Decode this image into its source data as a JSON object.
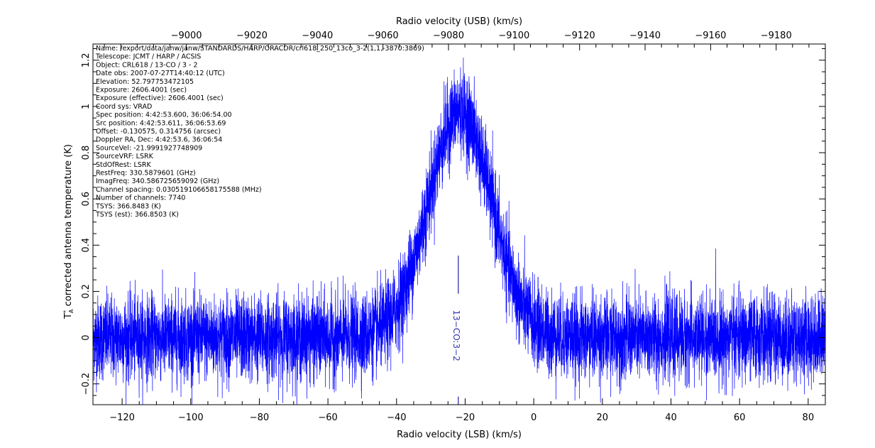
{
  "chart_data": {
    "type": "line",
    "xlabel": "Radio velocity (LSB) (km/s)",
    "x2label": "Radio velocity (USB) (km/s)",
    "ylabel_main": "T",
    "ylabel_sup": "*",
    "ylabel_sub": "A",
    "ylabel_rest": "  corrected antenna temperature (K)",
    "xlim": [
      -128.5,
      85
    ],
    "x2lim": [
      -8971.5,
      -9195
    ],
    "ylim": [
      -0.29,
      1.27
    ],
    "xticks": [
      -120,
      -100,
      -80,
      -60,
      -40,
      -20,
      0,
      20,
      40,
      60,
      80
    ],
    "xtick_labels": [
      "−120",
      "−100",
      "−80",
      "−60",
      "−40",
      "−20",
      "0",
      "20",
      "40",
      "60",
      "80"
    ],
    "x2ticks": [
      -9000,
      -9020,
      -9040,
      -9060,
      -9080,
      -9100,
      -9120,
      -9140,
      -9160,
      -9180
    ],
    "x2tick_labels": [
      "−9000",
      "−9020",
      "−9040",
      "−9060",
      "−9080",
      "−9100",
      "−9120",
      "−9140",
      "−9160",
      "−9180"
    ],
    "yticks": [
      -0.2,
      0,
      0.2,
      0.4,
      0.6,
      0.8,
      1,
      1.2
    ],
    "ytick_labels": [
      "−0.2",
      "0",
      "0.2",
      "0.4",
      "0.6",
      "0.8",
      "1",
      "1.2"
    ],
    "series_color": "#0000ff",
    "profile": {
      "v_center": -21.5,
      "peak": 0.98,
      "sigma": 9.2,
      "noise_rms": 0.09,
      "channels": 7740
    },
    "line_marker": {
      "x": -22.0,
      "label": "13−CO:3−2",
      "color": "#3333aa"
    },
    "metadata": [
      "Name: /export/data/janw/janw/STANDARDS/HARP/ORACDR/crl618_250_13co_3-2(1,1,-3870:3869)",
      "Telescope: JCMT / HARP / ACSIS",
      "Object: CRL618 / 13-CO / 3  - 2",
      "Date obs: 2007-07-27T14:40:12 (UTC)",
      "Elevation: 52.797753472105",
      "Exposure: 2606.4001 (sec)",
      "Exposure (effective): 2606.4001 (sec)",
      "Coord sys: VRAD",
      "Spec position: 4:42:53.600, 36:06:54.00",
      "Src position: 4:42:53.611, 36:06:53.69",
      "Offset: -0.130575, 0.314756 (arcsec)",
      "Doppler RA, Dec: 4:42:53.6, 36:06:54",
      "SourceVel: -21.9991927748909",
      "SourceVRF: LSRK",
      "StdOfRest: LSRK",
      "RestFreq: 330.5879601 (GHz)",
      "ImagFreq: 340.586725659092 (GHz)",
      "Channel spacing: 0.030519106658175588 (MHz)",
      "Number of channels: 7740",
      "TSYS: 366.8483 (K)",
      "TSYS (est): 366.8503 (K)"
    ]
  }
}
